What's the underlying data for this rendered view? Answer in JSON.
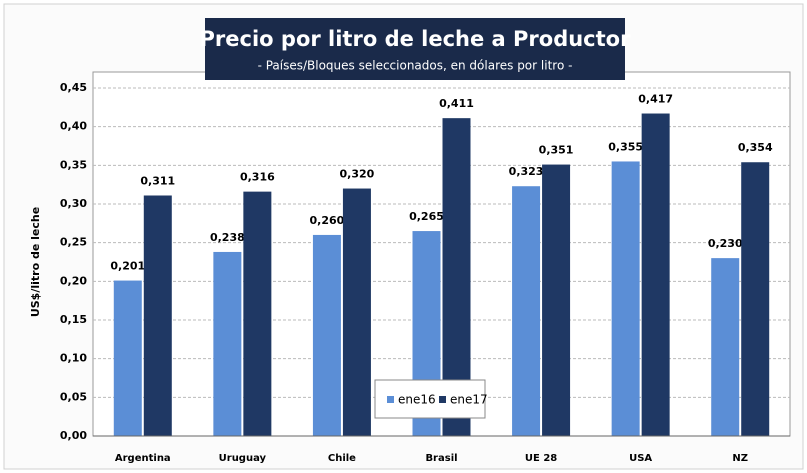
{
  "chart_data": {
    "type": "bar",
    "title": "Precio por litro de leche a Productor",
    "subtitle": "- Países/Bloques seleccionados, en dólares por litro -",
    "ylabel": "US$/litro de leche",
    "categories": [
      "Argentina",
      "Uruguay",
      "Chile",
      "Brasil",
      "UE 28",
      "USA",
      "NZ"
    ],
    "series": [
      {
        "name": "ene16",
        "color": "#5b8ed6",
        "values": [
          0.201,
          0.238,
          0.26,
          0.265,
          0.323,
          0.355,
          0.23
        ],
        "value_labels": [
          "0,201",
          "0,238",
          "0,260",
          "0,265",
          "0,323",
          "0,355",
          "0,230"
        ]
      },
      {
        "name": "ene17",
        "color": "#1f3864",
        "values": [
          0.311,
          0.316,
          0.32,
          0.411,
          0.351,
          0.417,
          0.354
        ],
        "value_labels": [
          "0,311",
          "0,316",
          "0,320",
          "0,411",
          "0,351",
          "0,417",
          "0,354"
        ]
      }
    ],
    "ylim": [
      0,
      0.45
    ],
    "yticks": [
      {
        "value": 0,
        "label": "0,00"
      },
      {
        "value": 0.05,
        "label": "0,05"
      },
      {
        "value": 0.1,
        "label": "0,10"
      },
      {
        "value": 0.15,
        "label": "0,15"
      },
      {
        "value": 0.2,
        "label": "0,20"
      },
      {
        "value": 0.25,
        "label": "0,25"
      },
      {
        "value": 0.3,
        "label": "0,30"
      },
      {
        "value": 0.35,
        "label": "0,35"
      },
      {
        "value": 0.4,
        "label": "0,40"
      },
      {
        "value": 0.45,
        "label": "0,45"
      }
    ],
    "grid": true,
    "legend": "bottom"
  }
}
